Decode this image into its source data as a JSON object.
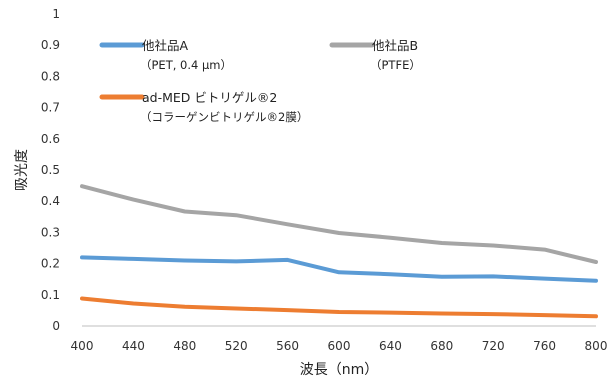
{
  "chart_data": {
    "type": "line",
    "x": [
      400,
      440,
      480,
      520,
      560,
      600,
      640,
      680,
      720,
      760,
      800
    ],
    "xlabel": "波長（nm）",
    "ylabel": "吸光度",
    "ylim": [
      0,
      1
    ],
    "yticks": [
      "0",
      "0.1",
      "0.2",
      "0.3",
      "0.4",
      "0.5",
      "0.6",
      "0.7",
      "0.8",
      "0.9",
      "1"
    ],
    "xticks": [
      "400",
      "440",
      "480",
      "520",
      "560",
      "600",
      "640",
      "680",
      "720",
      "760",
      "800"
    ],
    "grid": false,
    "legend_position": "top-inside",
    "series": [
      {
        "name": "他社品A",
        "note": "（PET, 0.4 μm）",
        "color": "#5b9bd5",
        "values": [
          0.22,
          0.215,
          0.21,
          0.207,
          0.212,
          0.172,
          0.166,
          0.158,
          0.159,
          0.152,
          0.145
        ]
      },
      {
        "name": "他社品B",
        "note": "（PTFE）",
        "color": "#a5a5a5",
        "values": [
          0.448,
          0.405,
          0.367,
          0.355,
          0.326,
          0.298,
          0.283,
          0.266,
          0.258,
          0.245,
          0.205
        ]
      },
      {
        "name": "ad-MED ビトリゲル®2",
        "note": "（コラーゲンビトリゲル®2膜）",
        "color": "#ed7d31",
        "values": [
          0.088,
          0.072,
          0.062,
          0.056,
          0.051,
          0.045,
          0.043,
          0.04,
          0.038,
          0.035,
          0.031
        ]
      }
    ]
  }
}
